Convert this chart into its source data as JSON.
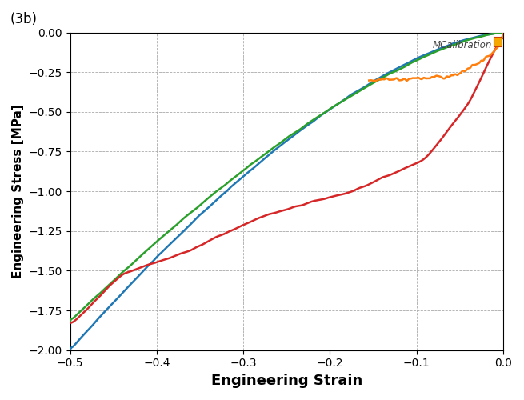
{
  "title_label": "(3b)",
  "xlabel": "Engineering Strain",
  "ylabel": "Engineering Stress [MPa]",
  "xlim": [
    -0.5,
    0.0
  ],
  "ylim": [
    -2.0,
    0.0
  ],
  "xticks": [
    -0.5,
    -0.4,
    -0.3,
    -0.2,
    -0.1,
    0.0
  ],
  "yticks": [
    0,
    -0.25,
    -0.5,
    -0.75,
    -1.0,
    -1.25,
    -1.5,
    -1.75,
    -2.0
  ],
  "watermark_text": "MCalibration",
  "bg_color": "#ffffff",
  "grid_color": "#aaaaaa",
  "curve_colors": {
    "blue": "#1f77b4",
    "green": "#2ca02c",
    "orange": "#d62728",
    "yellow": "#ff7f0e"
  }
}
